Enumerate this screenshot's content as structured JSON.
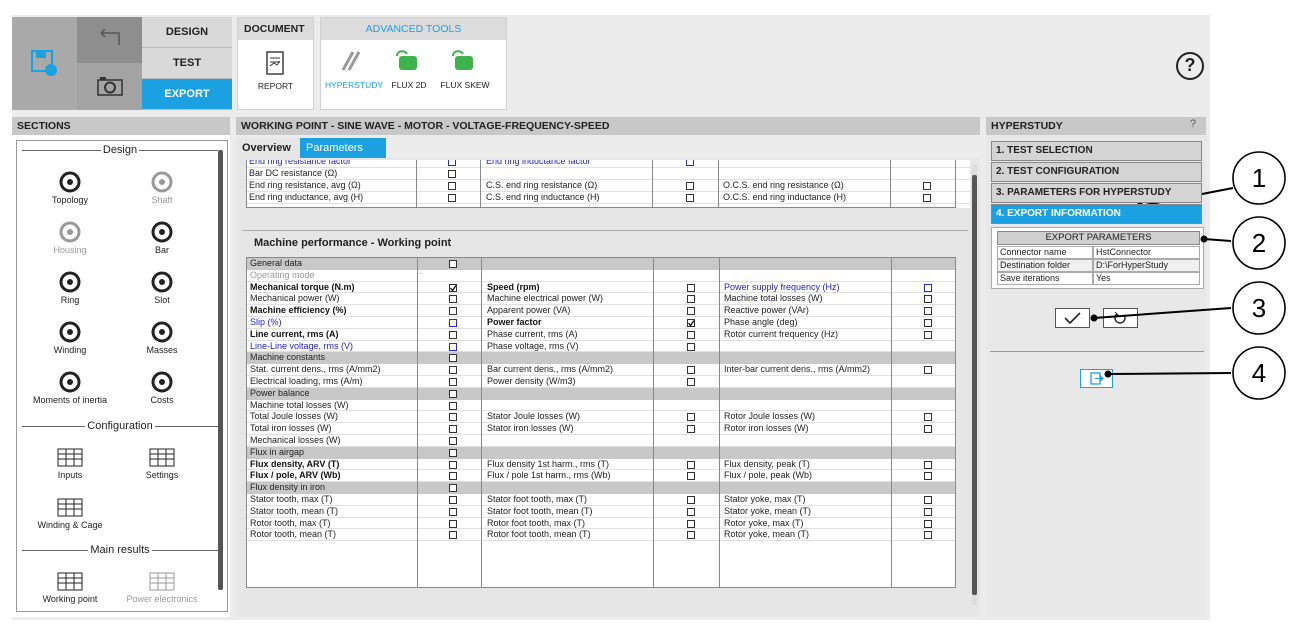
{
  "toolbar": {
    "main_tabs": [
      "DESIGN",
      "TEST",
      "EXPORT"
    ],
    "active_tab": 2,
    "document": {
      "title": "DOCUMENT",
      "items": [
        "REPORT"
      ]
    },
    "advanced_tools": {
      "title": "ADVANCED TOOLS",
      "items": [
        "HYPERSTUDY",
        "FLUX 2D",
        "FLUX SKEW"
      ],
      "active_item": 0
    },
    "help": "?"
  },
  "sections": {
    "title": "SECTIONS",
    "groups": [
      {
        "title": "Design",
        "items": [
          {
            "label": "Topology",
            "enabled": true
          },
          {
            "label": "Shaft",
            "enabled": false
          },
          {
            "label": "Housing",
            "enabled": false
          },
          {
            "label": "Bar",
            "enabled": true
          },
          {
            "label": "Ring",
            "enabled": true
          },
          {
            "label": "Slot",
            "enabled": true
          },
          {
            "label": "Winding",
            "enabled": true
          },
          {
            "label": "Masses",
            "enabled": true
          },
          {
            "label": "Moments of inertia",
            "enabled": true
          },
          {
            "label": "Costs",
            "enabled": true
          }
        ]
      },
      {
        "title": "Configuration",
        "items": [
          {
            "label": "Inputs",
            "enabled": true
          },
          {
            "label": "Settings",
            "enabled": true
          },
          {
            "label": "Winding & Cage",
            "enabled": true
          }
        ]
      },
      {
        "title": "Main results",
        "items": [
          {
            "label": "Working point",
            "enabled": true
          },
          {
            "label": "Power electronics",
            "enabled": false
          }
        ]
      }
    ]
  },
  "working_point": {
    "title": "WORKING POINT - SINE WAVE - MOTOR - VOLTAGE-FREQUENCY-SPEED",
    "tabs": [
      "Overview",
      "Parameters"
    ],
    "active_tab": 1,
    "top_rows": [
      [
        {
          "text": "End ring resistance factor",
          "checked": false,
          "style": "blue"
        },
        {
          "text": "End ring inductance factor",
          "checked": false,
          "style": "blue"
        },
        null
      ],
      [
        {
          "text": "Bar DC resistance (Ω)",
          "checked": false
        },
        null,
        null
      ],
      [
        {
          "text": "End ring resistance, avg (Ω)",
          "checked": false
        },
        {
          "text": "C.S. end ring resistance (Ω)",
          "checked": false
        },
        {
          "text": "O.C.S. end ring resistance (Ω)",
          "checked": false
        }
      ],
      [
        {
          "text": "End ring inductance, avg (H)",
          "checked": false
        },
        {
          "text": "C.S. end ring inductance (H)",
          "checked": false
        },
        {
          "text": "O.C.S. end ring inductance (H)",
          "checked": false
        }
      ]
    ],
    "performance_title": "Machine performance - Working point",
    "rows": [
      {
        "group": "General data",
        "checked": false
      },
      [
        {
          "text": "Operating mode",
          "style": "muted",
          "mark": "-"
        },
        null,
        null
      ],
      [
        {
          "text": "Mechanical torque (N.m)",
          "checked": true,
          "style": "bold"
        },
        {
          "text": "Speed (rpm)",
          "checked": false,
          "style": "bold"
        },
        {
          "text": "Power supply frequency (Hz)",
          "checked": false,
          "style": "blue"
        }
      ],
      [
        {
          "text": "Mechanical power (W)",
          "checked": false
        },
        {
          "text": "Machine electrical power (W)",
          "checked": false
        },
        {
          "text": "Machine total losses (W)",
          "checked": false
        }
      ],
      [
        {
          "text": "Machine efficiency (%)",
          "checked": false,
          "style": "bold"
        },
        {
          "text": "Apparent power (VA)",
          "checked": false
        },
        {
          "text": "Reactive power (VAr)",
          "checked": false
        }
      ],
      [
        {
          "text": "Slip (%)",
          "checked": false,
          "style": "blue"
        },
        {
          "text": "Power factor",
          "checked": true,
          "style": "bold"
        },
        {
          "text": "Phase angle (deg)",
          "checked": false
        }
      ],
      [
        {
          "text": "Line current, rms (A)",
          "checked": false,
          "style": "bold"
        },
        {
          "text": "Phase current, rms (A)",
          "checked": false
        },
        {
          "text": "Rotor current frequency (Hz)",
          "checked": false
        }
      ],
      [
        {
          "text": "Line-Line voltage, rms (V)",
          "checked": false,
          "style": "blue"
        },
        {
          "text": "Phase voltage, rms (V)",
          "checked": false
        },
        null
      ],
      {
        "group": "Machine constants",
        "checked": false
      },
      [
        {
          "text": "Stat. current dens., rms (A/mm2)",
          "checked": false
        },
        {
          "text": "Bar current dens., rms (A/mm2)",
          "checked": false
        },
        {
          "text": "Inter-bar current dens., rms (A/mm2)",
          "checked": false
        }
      ],
      [
        {
          "text": "Electrical loading, rms (A/m)",
          "checked": false
        },
        {
          "text": "Power density (W/m3)",
          "checked": false
        },
        null
      ],
      {
        "group": "Power balance",
        "checked": false
      },
      [
        {
          "text": "Machine total losses (W)",
          "checked": false
        },
        null,
        null
      ],
      [
        {
          "text": "Total Joule losses (W)",
          "checked": false
        },
        {
          "text": "Stator Joule losses (W)",
          "checked": false
        },
        {
          "text": "Rotor Joule losses (W)",
          "checked": false
        }
      ],
      [
        {
          "text": "Total iron losses (W)",
          "checked": false
        },
        {
          "text": "Stator iron losses (W)",
          "checked": false
        },
        {
          "text": "Rotor iron losses (W)",
          "checked": false
        }
      ],
      [
        {
          "text": "Mechanical losses (W)",
          "checked": false
        },
        null,
        null
      ],
      {
        "group": "Flux in airgap",
        "checked": false
      },
      [
        {
          "text": "Flux density, ARV (T)",
          "checked": false,
          "style": "bold"
        },
        {
          "text": "Flux density 1st harm., rms (T)",
          "checked": false
        },
        {
          "text": "Flux density, peak (T)",
          "checked": false
        }
      ],
      [
        {
          "text": "Flux / pole, ARV (Wb)",
          "checked": false,
          "style": "bold"
        },
        {
          "text": "Flux / pole 1st harm., rms (Wb)",
          "checked": false
        },
        {
          "text": "Flux / pole, peak (Wb)",
          "checked": false
        }
      ],
      {
        "group": "Flux density in iron",
        "checked": false
      },
      [
        {
          "text": "Stator tooth, max (T)",
          "checked": false
        },
        {
          "text": "Stator foot tooth, max (T)",
          "checked": false
        },
        {
          "text": "Stator yoke, max (T)",
          "checked": false
        }
      ],
      [
        {
          "text": "Stator tooth, mean (T)",
          "checked": false
        },
        {
          "text": "Stator foot tooth, mean (T)",
          "checked": false
        },
        {
          "text": "Stator yoke, mean (T)",
          "checked": false
        }
      ],
      [
        {
          "text": "Rotor tooth, max (T)",
          "checked": false
        },
        {
          "text": "Rotor foot tooth, max (T)",
          "checked": false
        },
        {
          "text": "Rotor yoke, max (T)",
          "checked": false
        }
      ],
      [
        {
          "text": "Rotor tooth, mean (T)",
          "checked": false
        },
        {
          "text": "Rotor foot tooth, mean (T)",
          "checked": false
        },
        {
          "text": "Rotor yoke, mean (T)",
          "checked": false
        }
      ]
    ]
  },
  "hyperstudy": {
    "title": "HYPERSTUDY",
    "help": "?",
    "steps": [
      "1. TEST SELECTION",
      "2. TEST CONFIGURATION",
      "3. PARAMETERS FOR HYPERSTUDY",
      "4. EXPORT INFORMATION"
    ],
    "active_step": 3,
    "export_parameters": {
      "title": "EXPORT PARAMETERS",
      "rows": [
        [
          "Connector name",
          "HstConnector"
        ],
        [
          "Destination folder",
          "D:\\ForHyperStudy"
        ],
        [
          "Save iterations",
          "Yes"
        ]
      ]
    }
  },
  "callouts": [
    "1",
    "2",
    "3",
    "4"
  ]
}
